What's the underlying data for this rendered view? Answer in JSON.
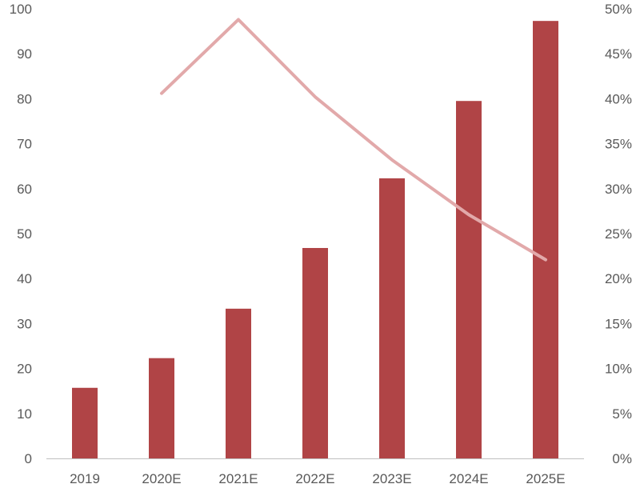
{
  "chart_data": {
    "type": "bar",
    "title": "",
    "xlabel": "",
    "ylabel": "",
    "categories": [
      "2019",
      "2020E",
      "2021E",
      "2022E",
      "2023E",
      "2024E",
      "2025E"
    ],
    "series": [
      {
        "type": "bar",
        "axis": "left",
        "color": "#b04446",
        "values": [
          15.7,
          22.3,
          33.3,
          46.8,
          62.3,
          79.5,
          97.3
        ]
      },
      {
        "type": "line",
        "axis": "right",
        "color": "#e2a9aa",
        "values": [
          null,
          40.6,
          48.8,
          40.2,
          33.2,
          27.1,
          22.1
        ]
      }
    ],
    "y_left": {
      "min": 0,
      "max": 100,
      "step": 10,
      "ticks": [
        "0",
        "10",
        "20",
        "30",
        "40",
        "50",
        "60",
        "70",
        "80",
        "90",
        "100"
      ]
    },
    "y_right": {
      "min": 0,
      "max": 50,
      "step": 5,
      "ticks": [
        "0%",
        "5%",
        "10%",
        "15%",
        "20%",
        "25%",
        "30%",
        "35%",
        "40%",
        "45%",
        "50%"
      ]
    },
    "grid": false,
    "legend": "none"
  }
}
